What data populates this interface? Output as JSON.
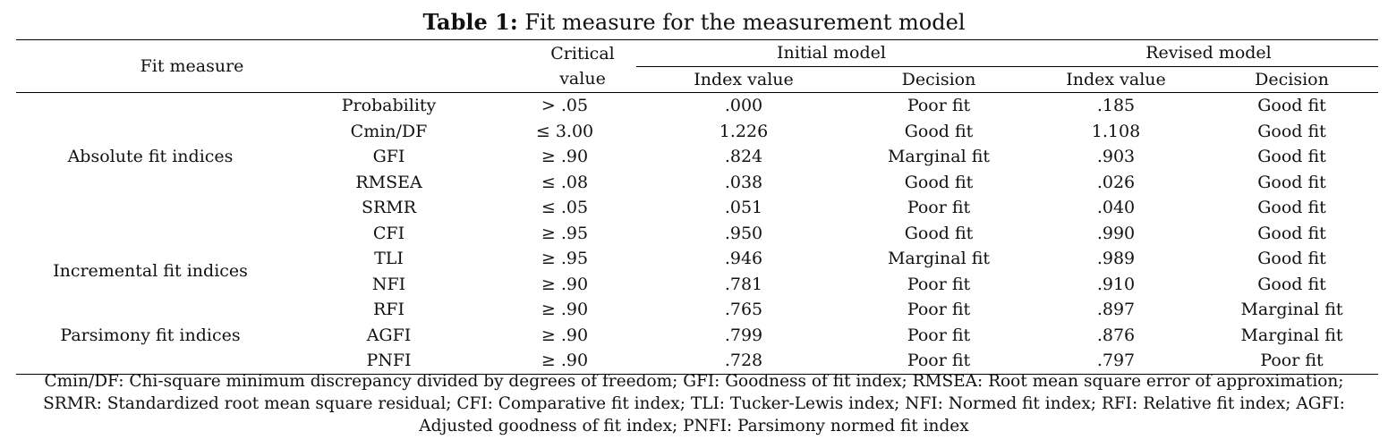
{
  "title": {
    "label": "Table 1:",
    "text": " Fit measure for the measurement model"
  },
  "header": {
    "fit_measure": "Fit measure",
    "critical_value": "Critical value",
    "initial_model": "Initial model",
    "revised_model": "Revised model",
    "index_value": "Index value",
    "decision": "Decision"
  },
  "groups": [
    {
      "name": "Absolute fit indices",
      "rows": [
        {
          "measure": "Probability",
          "critical": "> .05",
          "init_index": ".000",
          "init_decision": "Poor fit",
          "rev_index": ".185",
          "rev_decision": "Good fit"
        },
        {
          "measure": "Cmin/DF",
          "critical": "≤ 3.00",
          "init_index": "1.226",
          "init_decision": "Good fit",
          "rev_index": "1.108",
          "rev_decision": "Good fit"
        },
        {
          "measure": "GFI",
          "critical": "≥ .90",
          "init_index": ".824",
          "init_decision": "Marginal fit",
          "rev_index": ".903",
          "rev_decision": "Good fit"
        },
        {
          "measure": "RMSEA",
          "critical": "≤ .08",
          "init_index": ".038",
          "init_decision": "Good fit",
          "rev_index": ".026",
          "rev_decision": "Good fit"
        },
        {
          "measure": "SRMR",
          "critical": "≤ .05",
          "init_index": ".051",
          "init_decision": "Poor fit",
          "rev_index": ".040",
          "rev_decision": "Good fit"
        }
      ]
    },
    {
      "name": "Incremental fit indices",
      "rows": [
        {
          "measure": "CFI",
          "critical": "≥ .95",
          "init_index": ".950",
          "init_decision": "Good fit",
          "rev_index": ".990",
          "rev_decision": "Good fit"
        },
        {
          "measure": "TLI",
          "critical": "≥ .95",
          "init_index": ".946",
          "init_decision": "Marginal fit",
          "rev_index": ".989",
          "rev_decision": "Good fit"
        },
        {
          "measure": "NFI",
          "critical": "≥ .90",
          "init_index": ".781",
          "init_decision": "Poor fit",
          "rev_index": ".910",
          "rev_decision": "Good fit"
        },
        {
          "measure": "RFI",
          "critical": "≥ .90",
          "init_index": ".765",
          "init_decision": "Poor fit",
          "rev_index": ".897",
          "rev_decision": "Marginal fit"
        }
      ]
    },
    {
      "name": "Parsimony fit indices",
      "rows": [
        {
          "measure": "AGFI",
          "critical": "≥ .90",
          "init_index": ".799",
          "init_decision": "Poor fit",
          "rev_index": ".876",
          "rev_decision": "Marginal fit"
        },
        {
          "measure": "PNFI",
          "critical": "≥ .90",
          "init_index": ".728",
          "init_decision": "Poor fit",
          "rev_index": ".797",
          "rev_decision": "Poor fit"
        }
      ]
    }
  ],
  "footnote": "Cmin/DF: Chi-square minimum discrepancy divided by degrees of freedom; GFI: Goodness of fit index; RMSEA: Root mean square error of approximation; SRMR: Standardized root mean square residual; CFI: Comparative fit index; TLI: Tucker-Lewis index; NFI: Normed fit index; RFI: Relative fit index; AGFI: Adjusted goodness of fit index; PNFI: Parsimony normed fit index"
}
